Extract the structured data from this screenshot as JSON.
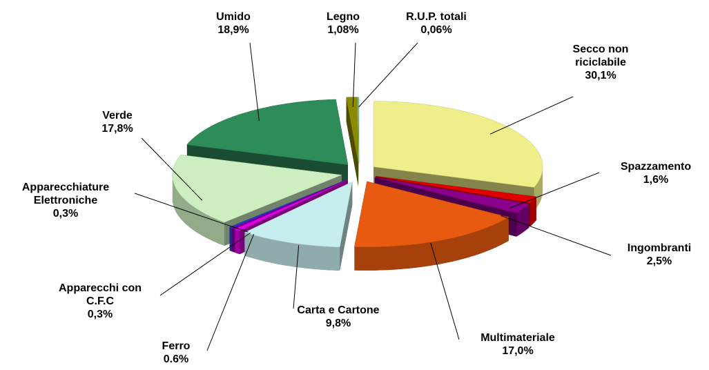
{
  "chart_data": {
    "type": "pie3d",
    "categories": [
      "Secco non riciclabile",
      "Spazzamento",
      "Ingombranti",
      "Multimateriale",
      "Carta e Cartone",
      "Ferro",
      "Apparecchi con C.F.C",
      "Apparecchiature Elettroniche",
      "Verde",
      "Umido",
      "Legno",
      "R.U.P. totali"
    ],
    "values": [
      30.1,
      1.6,
      2.5,
      17.0,
      9.8,
      0.6,
      0.3,
      0.3,
      17.8,
      18.9,
      1.08,
      0.06
    ],
    "value_labels": [
      "30,1%",
      "1,6%",
      "2,5%",
      "17,0%",
      "9,8%",
      "0.6%",
      "0,3%",
      "0,3%",
      "17,8%",
      "18,9%",
      "1,08%",
      "0,06%"
    ],
    "colors": [
      "#eeee8a",
      "#e00000",
      "#8a008a",
      "#e85a10",
      "#c6eeee",
      "#e000e0",
      "#7a00a0",
      "#2a3ac8",
      "#cdeec0",
      "#2e8b5a",
      "#8b8b00",
      "#00f0f0"
    ]
  }
}
